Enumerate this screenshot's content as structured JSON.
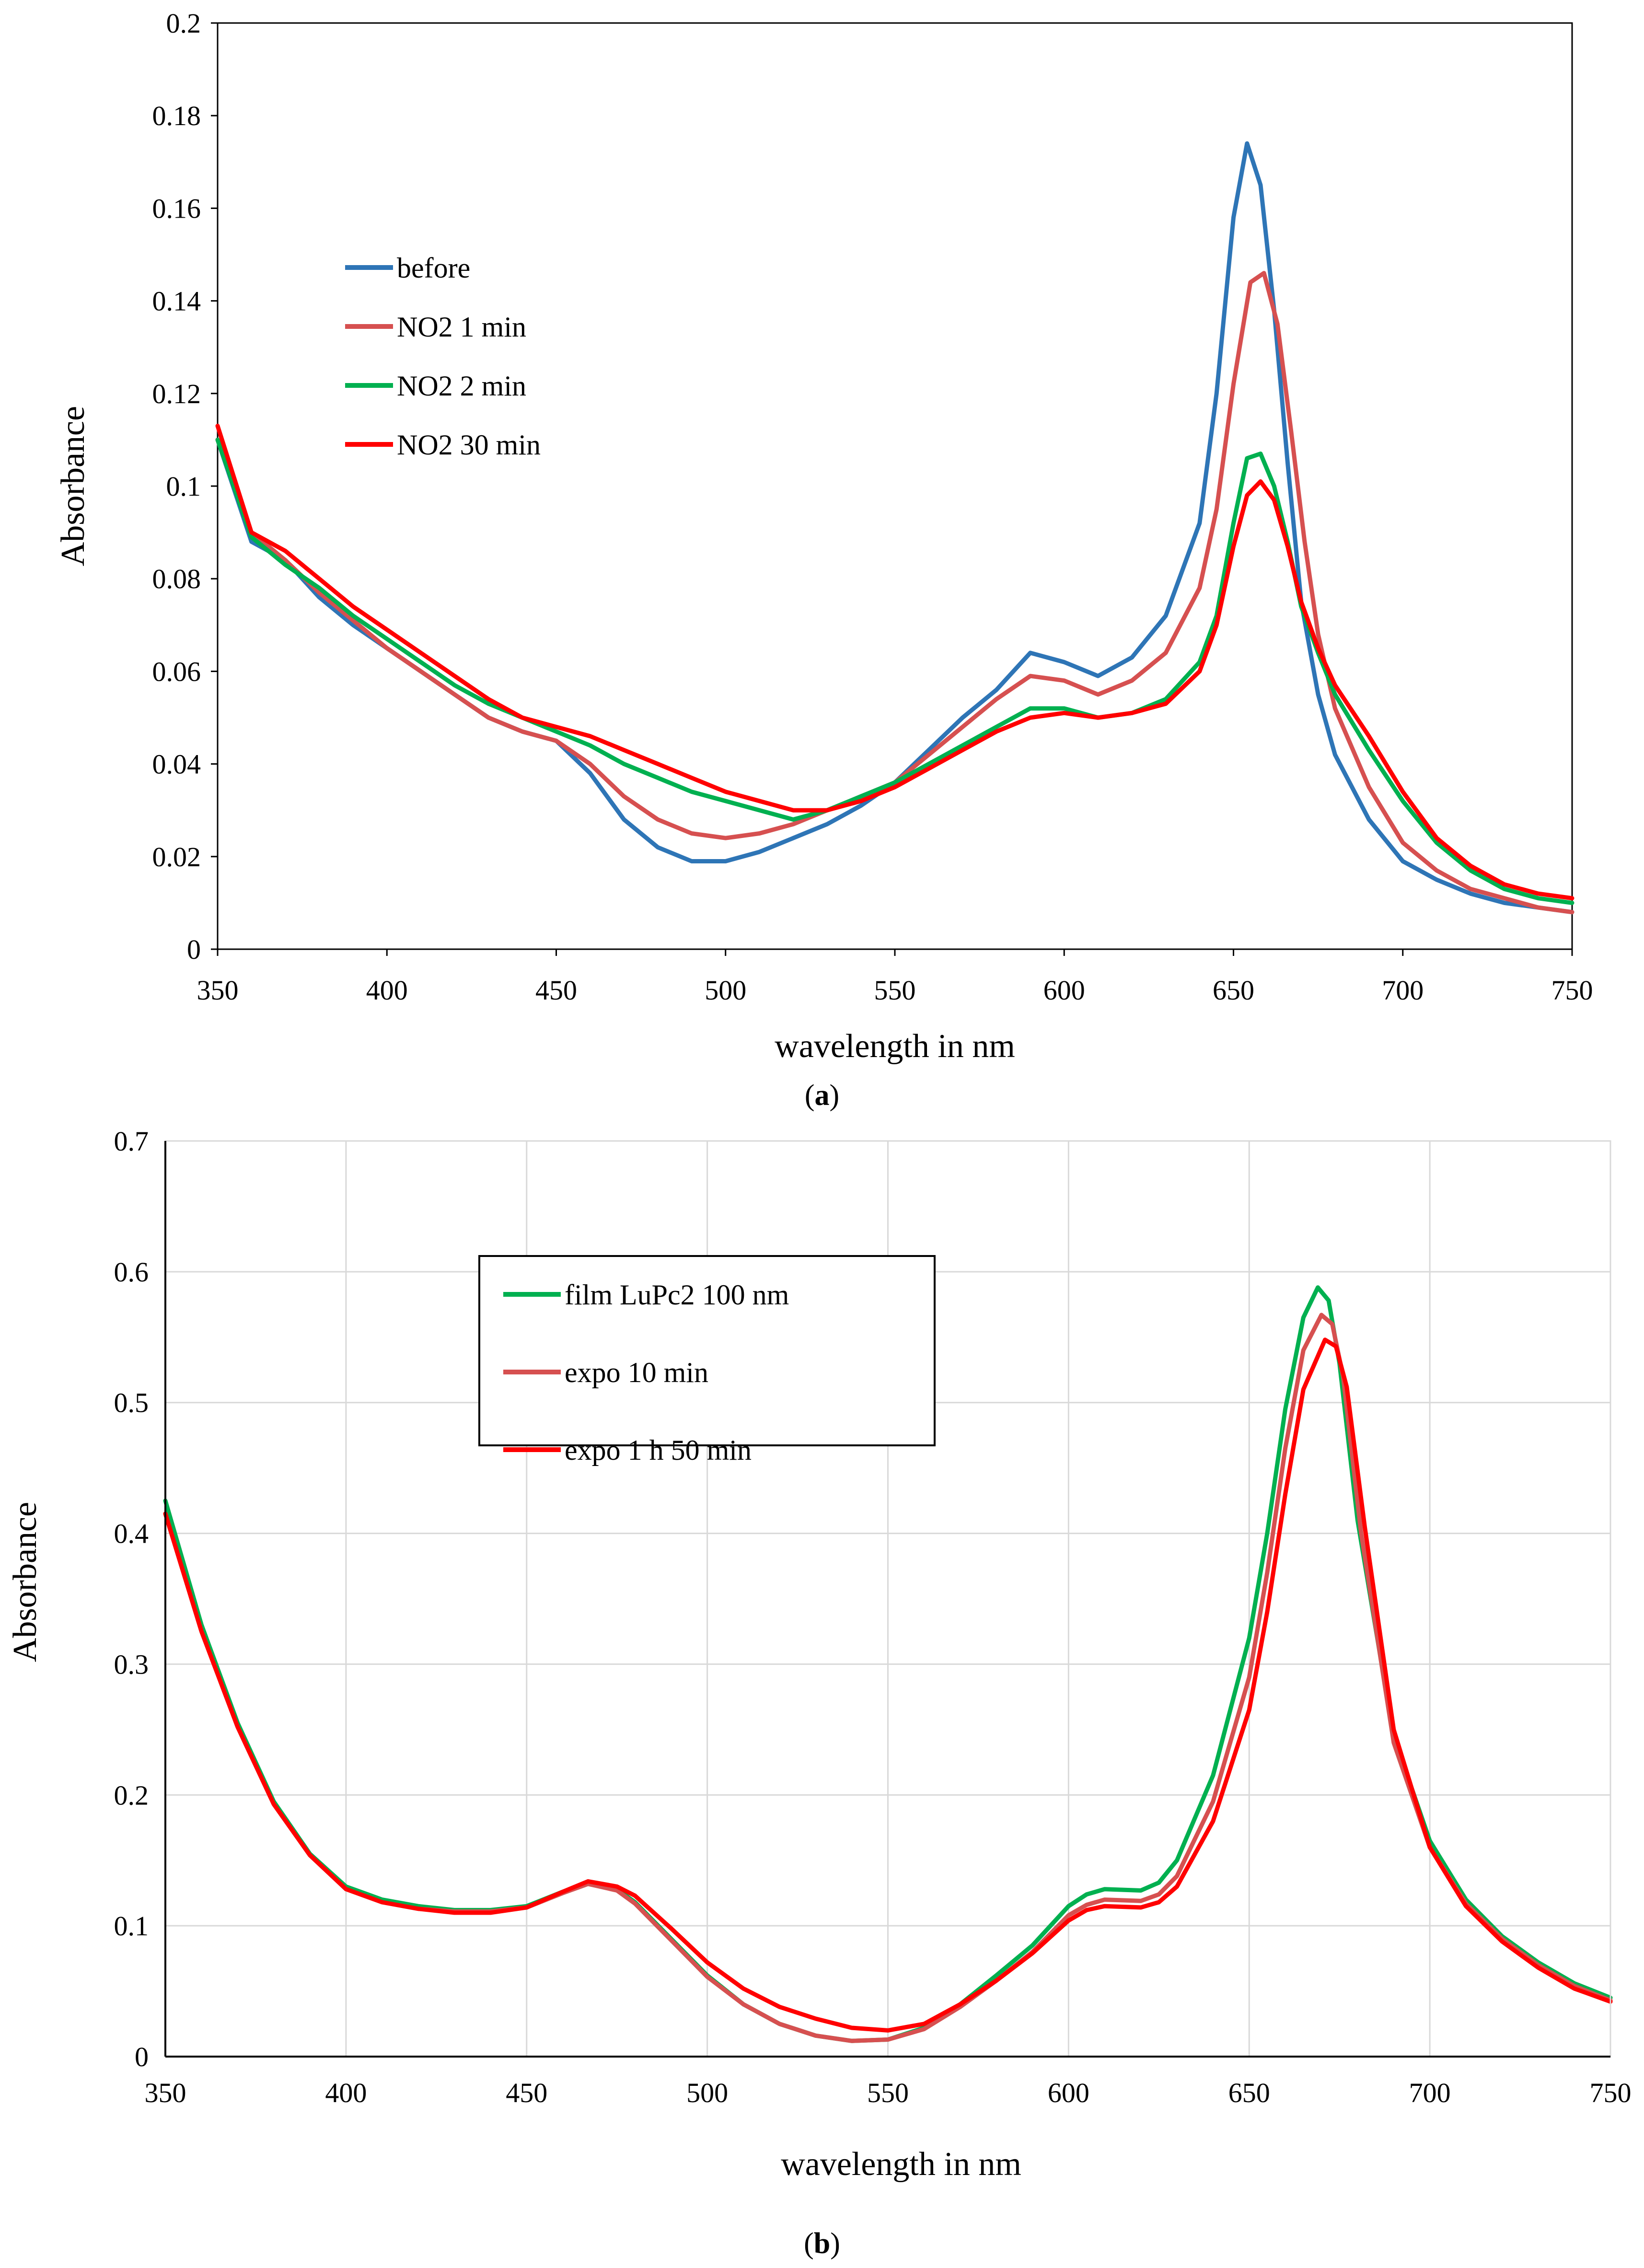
{
  "chart_data": [
    {
      "id": "a",
      "type": "line",
      "caption_letter": "a",
      "xlabel": "wavelength in nm",
      "ylabel": "Absorbance",
      "xlim": [
        350,
        750
      ],
      "ylim": [
        0,
        0.2
      ],
      "xticks": [
        350,
        400,
        450,
        500,
        550,
        600,
        650,
        700,
        750
      ],
      "yticks": [
        0,
        0.02,
        0.04,
        0.06,
        0.08,
        0.1,
        0.12,
        0.14,
        0.16,
        0.18,
        0.2
      ],
      "ytick_labels": [
        "0",
        "0.02",
        "0.04",
        "0.06",
        "0.08",
        "0.1",
        "0.12",
        "0.14",
        "0.16",
        "0.18",
        "0.2"
      ],
      "grid": false,
      "legend_position": "left-middle",
      "legend_box": false,
      "series": [
        {
          "name": "before",
          "color": "#2e75b6",
          "x": [
            350,
            360,
            370,
            380,
            390,
            400,
            410,
            420,
            430,
            440,
            450,
            460,
            470,
            480,
            490,
            500,
            510,
            520,
            530,
            540,
            550,
            560,
            570,
            580,
            590,
            600,
            610,
            620,
            630,
            640,
            645,
            650,
            654,
            658,
            662,
            666,
            670,
            675,
            680,
            690,
            700,
            710,
            720,
            730,
            740,
            750
          ],
          "y": [
            0.11,
            0.088,
            0.084,
            0.076,
            0.07,
            0.065,
            0.06,
            0.055,
            0.05,
            0.047,
            0.045,
            0.038,
            0.028,
            0.022,
            0.019,
            0.019,
            0.021,
            0.024,
            0.027,
            0.031,
            0.036,
            0.043,
            0.05,
            0.056,
            0.064,
            0.062,
            0.059,
            0.063,
            0.072,
            0.092,
            0.12,
            0.158,
            0.174,
            0.165,
            0.138,
            0.105,
            0.075,
            0.055,
            0.042,
            0.028,
            0.019,
            0.015,
            0.012,
            0.01,
            0.009,
            0.008
          ]
        },
        {
          "name": "NO2 1 min",
          "color": "#d65050",
          "x": [
            350,
            360,
            370,
            380,
            390,
            400,
            410,
            420,
            430,
            440,
            450,
            460,
            470,
            480,
            490,
            500,
            510,
            520,
            530,
            540,
            550,
            560,
            570,
            580,
            590,
            600,
            610,
            620,
            630,
            640,
            645,
            650,
            655,
            659,
            663,
            667,
            671,
            675,
            680,
            690,
            700,
            710,
            720,
            730,
            740,
            750
          ],
          "y": [
            0.11,
            0.09,
            0.084,
            0.077,
            0.071,
            0.065,
            0.06,
            0.055,
            0.05,
            0.047,
            0.045,
            0.04,
            0.033,
            0.028,
            0.025,
            0.024,
            0.025,
            0.027,
            0.03,
            0.033,
            0.036,
            0.042,
            0.048,
            0.054,
            0.059,
            0.058,
            0.055,
            0.058,
            0.064,
            0.078,
            0.095,
            0.122,
            0.144,
            0.146,
            0.135,
            0.112,
            0.088,
            0.068,
            0.052,
            0.035,
            0.023,
            0.017,
            0.013,
            0.011,
            0.009,
            0.008
          ]
        },
        {
          "name": "NO2 2 min",
          "color": "#00b050",
          "x": [
            350,
            360,
            370,
            380,
            390,
            400,
            410,
            420,
            430,
            440,
            450,
            460,
            470,
            480,
            490,
            500,
            510,
            520,
            530,
            540,
            550,
            560,
            570,
            580,
            590,
            600,
            610,
            620,
            630,
            640,
            645,
            650,
            654,
            658,
            662,
            666,
            670,
            675,
            680,
            690,
            700,
            710,
            720,
            730,
            740,
            750
          ],
          "y": [
            0.11,
            0.089,
            0.083,
            0.078,
            0.072,
            0.067,
            0.062,
            0.057,
            0.053,
            0.05,
            0.047,
            0.044,
            0.04,
            0.037,
            0.034,
            0.032,
            0.03,
            0.028,
            0.03,
            0.033,
            0.036,
            0.04,
            0.044,
            0.048,
            0.052,
            0.052,
            0.05,
            0.051,
            0.054,
            0.062,
            0.072,
            0.092,
            0.106,
            0.107,
            0.1,
            0.088,
            0.074,
            0.064,
            0.055,
            0.043,
            0.032,
            0.023,
            0.017,
            0.013,
            0.011,
            0.01
          ]
        },
        {
          "name": "NO2 30 min",
          "color": "#ff0000",
          "x": [
            350,
            360,
            370,
            380,
            390,
            400,
            410,
            420,
            430,
            440,
            450,
            460,
            470,
            480,
            490,
            500,
            510,
            520,
            530,
            540,
            550,
            560,
            570,
            580,
            590,
            600,
            610,
            620,
            630,
            640,
            645,
            650,
            654,
            658,
            662,
            666,
            670,
            675,
            680,
            690,
            700,
            710,
            720,
            730,
            740,
            750
          ],
          "y": [
            0.113,
            0.09,
            0.086,
            0.08,
            0.074,
            0.069,
            0.064,
            0.059,
            0.054,
            0.05,
            0.048,
            0.046,
            0.043,
            0.04,
            0.037,
            0.034,
            0.032,
            0.03,
            0.03,
            0.032,
            0.035,
            0.039,
            0.043,
            0.047,
            0.05,
            0.051,
            0.05,
            0.051,
            0.053,
            0.06,
            0.07,
            0.087,
            0.098,
            0.101,
            0.097,
            0.087,
            0.075,
            0.065,
            0.057,
            0.046,
            0.034,
            0.024,
            0.018,
            0.014,
            0.012,
            0.011
          ]
        }
      ]
    },
    {
      "id": "b",
      "type": "line",
      "caption_letter": "b",
      "xlabel": "wavelength in nm",
      "ylabel": "Absorbance",
      "xlim": [
        350,
        750
      ],
      "ylim": [
        0,
        0.7
      ],
      "xticks": [
        350,
        400,
        450,
        500,
        550,
        600,
        650,
        700,
        750
      ],
      "yticks": [
        0,
        0.1,
        0.2,
        0.3,
        0.4,
        0.5,
        0.6,
        0.7
      ],
      "ytick_labels": [
        "0",
        "0.1",
        "0.2",
        "0.3",
        "0.4",
        "0.5",
        "0.6",
        "0.7"
      ],
      "grid": true,
      "legend_position": "top-center",
      "legend_box": true,
      "series": [
        {
          "name": "film LuPc2 100 nm",
          "color": "#00b050",
          "x": [
            350,
            360,
            370,
            380,
            390,
            400,
            410,
            420,
            430,
            440,
            450,
            460,
            467,
            475,
            480,
            490,
            500,
            510,
            520,
            530,
            540,
            550,
            560,
            570,
            580,
            590,
            600,
            605,
            610,
            620,
            625,
            630,
            640,
            650,
            655,
            660,
            665,
            669,
            672,
            675,
            680,
            690,
            700,
            710,
            720,
            730,
            740,
            750
          ],
          "y": [
            0.425,
            0.33,
            0.255,
            0.195,
            0.155,
            0.13,
            0.12,
            0.115,
            0.112,
            0.112,
            0.115,
            0.126,
            0.133,
            0.128,
            0.118,
            0.09,
            0.062,
            0.04,
            0.025,
            0.016,
            0.012,
            0.013,
            0.022,
            0.04,
            0.062,
            0.085,
            0.115,
            0.124,
            0.128,
            0.127,
            0.133,
            0.15,
            0.215,
            0.32,
            0.4,
            0.495,
            0.565,
            0.588,
            0.578,
            0.53,
            0.41,
            0.245,
            0.165,
            0.12,
            0.092,
            0.072,
            0.056,
            0.045
          ]
        },
        {
          "name": "expo 10 min",
          "color": "#d65050",
          "x": [
            350,
            360,
            370,
            380,
            390,
            400,
            410,
            420,
            430,
            440,
            450,
            460,
            467,
            475,
            480,
            490,
            500,
            510,
            520,
            530,
            540,
            550,
            560,
            570,
            580,
            590,
            600,
            605,
            610,
            620,
            625,
            630,
            640,
            650,
            655,
            660,
            665,
            670,
            673,
            676,
            681,
            690,
            700,
            710,
            720,
            730,
            740,
            750
          ],
          "y": [
            0.415,
            0.325,
            0.252,
            0.193,
            0.154,
            0.128,
            0.118,
            0.113,
            0.111,
            0.111,
            0.114,
            0.125,
            0.132,
            0.127,
            0.117,
            0.089,
            0.061,
            0.04,
            0.025,
            0.016,
            0.012,
            0.013,
            0.021,
            0.038,
            0.058,
            0.08,
            0.108,
            0.116,
            0.12,
            0.119,
            0.124,
            0.138,
            0.195,
            0.29,
            0.37,
            0.465,
            0.54,
            0.567,
            0.56,
            0.52,
            0.4,
            0.24,
            0.16,
            0.117,
            0.09,
            0.07,
            0.054,
            0.043
          ]
        },
        {
          "name": "expo 1 h 50 min",
          "color": "#ff0000",
          "x": [
            350,
            360,
            370,
            380,
            390,
            400,
            410,
            420,
            430,
            440,
            450,
            460,
            467,
            475,
            480,
            490,
            500,
            510,
            520,
            530,
            540,
            550,
            560,
            570,
            580,
            590,
            600,
            605,
            610,
            620,
            625,
            630,
            640,
            650,
            655,
            660,
            665,
            671,
            674,
            677,
            682,
            690,
            700,
            710,
            720,
            730,
            740,
            750
          ],
          "y": [
            0.415,
            0.325,
            0.252,
            0.193,
            0.154,
            0.128,
            0.118,
            0.113,
            0.11,
            0.11,
            0.114,
            0.126,
            0.134,
            0.13,
            0.123,
            0.098,
            0.072,
            0.052,
            0.038,
            0.029,
            0.022,
            0.02,
            0.025,
            0.04,
            0.058,
            0.079,
            0.104,
            0.112,
            0.115,
            0.114,
            0.118,
            0.13,
            0.18,
            0.265,
            0.34,
            0.43,
            0.51,
            0.548,
            0.543,
            0.512,
            0.405,
            0.25,
            0.16,
            0.115,
            0.088,
            0.068,
            0.052,
            0.042
          ]
        }
      ]
    }
  ]
}
